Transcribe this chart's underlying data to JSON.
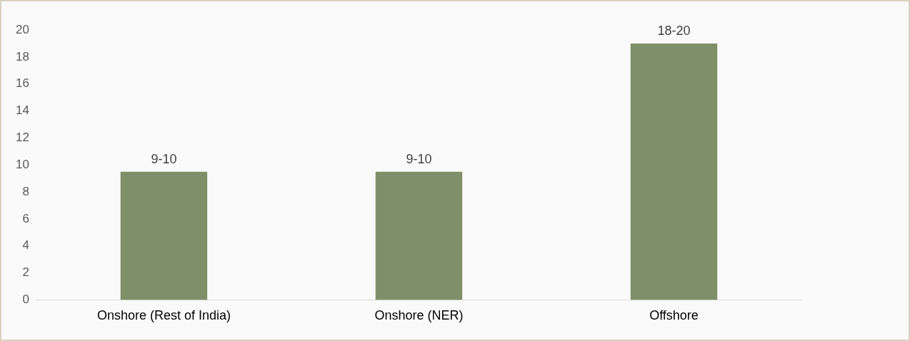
{
  "chart_data": {
    "type": "bar",
    "categories": [
      "Onshore (Rest of India)",
      "Onshore (NER)",
      "Offshore"
    ],
    "values": [
      9.5,
      9.5,
      19
    ],
    "color": "#7f8f67",
    "value_labels": [
      "9-10",
      "9-10",
      "18-20"
    ],
    "ylim": [
      0,
      20
    ],
    "yticks": [
      0,
      2,
      4,
      6,
      8,
      10,
      12,
      14,
      16,
      18,
      20
    ],
    "grid": false,
    "legend": false
  }
}
